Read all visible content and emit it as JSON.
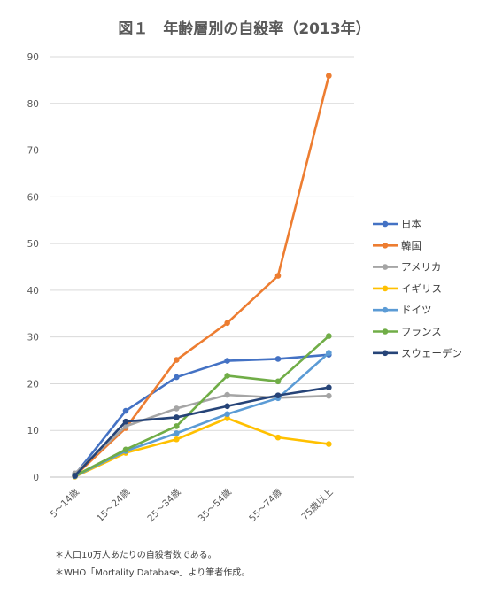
{
  "chart_data": {
    "type": "line",
    "title": "図１　年齢層別の自殺率（2013年）",
    "categories": [
      "5～14歳",
      "15～24歳",
      "25～34歳",
      "35～54歳",
      "55～74歳",
      "75歳以上"
    ],
    "ylim": [
      0,
      90
    ],
    "yticks": [
      0,
      10,
      20,
      30,
      40,
      50,
      60,
      70,
      80,
      90
    ],
    "grid": true,
    "legend_position": "right",
    "series": [
      {
        "name": "日本",
        "color": "#4472C4",
        "values": [
          0.5,
          14.2,
          21.4,
          24.9,
          25.3,
          26.2
        ]
      },
      {
        "name": "韓国",
        "color": "#ED7D31",
        "values": [
          0.3,
          10.5,
          25.1,
          33.0,
          43.1,
          85.9
        ]
      },
      {
        "name": "アメリカ",
        "color": "#A5A5A5",
        "values": [
          0.8,
          10.9,
          14.7,
          17.6,
          17.0,
          17.4
        ]
      },
      {
        "name": "イギリス",
        "color": "#FFC000",
        "values": [
          0.1,
          5.2,
          8.1,
          12.6,
          8.5,
          7.1
        ]
      },
      {
        "name": "ドイツ",
        "color": "#5B9BD5",
        "values": [
          0.2,
          5.6,
          9.4,
          13.5,
          16.9,
          26.6
        ]
      },
      {
        "name": "フランス",
        "color": "#70AD47",
        "values": [
          0.3,
          5.9,
          10.9,
          21.7,
          20.5,
          30.2
        ]
      },
      {
        "name": "スウェーデン",
        "color": "#264478",
        "values": [
          0.3,
          11.9,
          12.8,
          15.2,
          17.5,
          19.2
        ]
      }
    ]
  },
  "notes": [
    "＊人口10万人あたりの自殺者数である。",
    "＊WHO「Mortality Database」より筆者作成。"
  ]
}
